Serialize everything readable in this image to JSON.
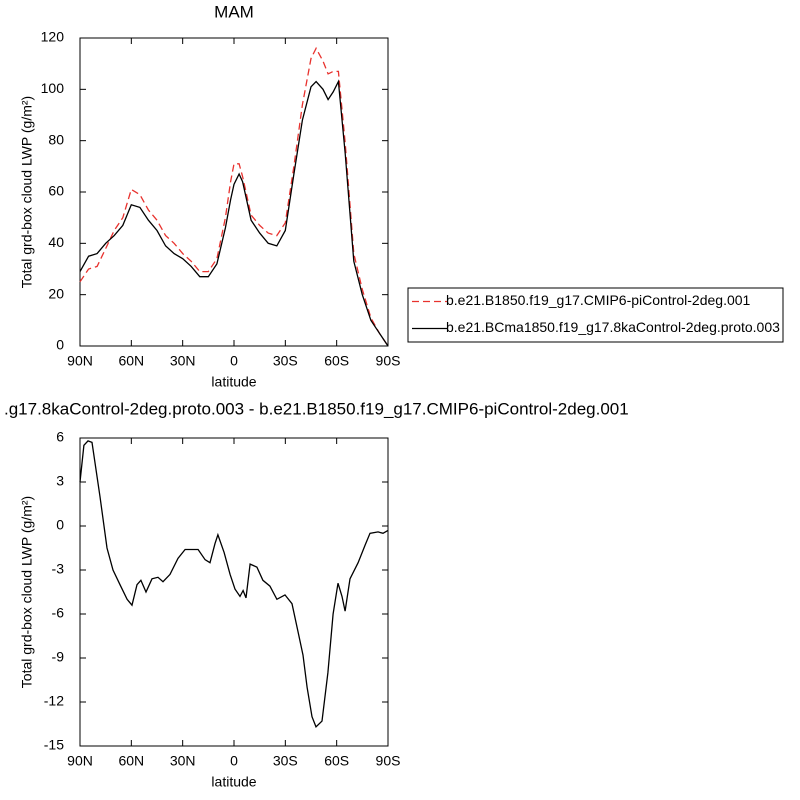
{
  "chart_data": [
    {
      "type": "line",
      "title": "MAM",
      "xlabel": "latitude",
      "ylabel": "Total grd-box cloud LWP (g/m²)",
      "x": [
        90,
        85,
        80,
        75,
        70,
        65,
        60,
        55,
        50,
        45,
        40,
        35,
        30,
        25,
        20,
        15,
        10,
        5,
        2,
        0,
        -3,
        -5,
        -10,
        -15,
        -20,
        -25,
        -30,
        -35,
        -40,
        -45,
        -48,
        -52,
        -55,
        -58,
        -61,
        -65,
        -70,
        -75,
        -80,
        -85,
        -90
      ],
      "series": [
        {
          "name": "b.e21.B1850.f19_g17.CMIP6-piControl-2deg.001",
          "color": "#e8322e",
          "dash": true,
          "values": [
            25,
            30,
            31,
            38,
            45,
            50,
            61,
            59,
            53,
            49,
            43,
            40,
            36,
            33,
            29,
            29,
            34,
            50,
            64,
            71,
            71,
            66,
            51,
            47,
            44,
            43,
            48,
            70,
            94,
            112,
            116,
            111,
            106,
            107,
            107,
            79,
            36,
            22,
            11,
            5,
            0
          ]
        },
        {
          "name": "b.e21.BCma1850.f19_g17.8kaControl-2deg.proto.003",
          "color": "#000000",
          "dash": false,
          "values": [
            29,
            35,
            36,
            40,
            43,
            47,
            55,
            54,
            49,
            45,
            39,
            36,
            34,
            31,
            27,
            27,
            32,
            46,
            57,
            63,
            67,
            64,
            49,
            44,
            40,
            39,
            45,
            67,
            88,
            101,
            103,
            100,
            96,
            99,
            103,
            75,
            33,
            20,
            10,
            5,
            0
          ]
        }
      ],
      "xlim": [
        90,
        -90
      ],
      "xticks": [
        {
          "value": 90,
          "label": "90N"
        },
        {
          "value": 60,
          "label": "60N"
        },
        {
          "value": 30,
          "label": "30N"
        },
        0,
        {
          "value": -30,
          "label": "30S"
        },
        {
          "value": -60,
          "label": "60S"
        },
        {
          "value": -90,
          "label": "90S"
        }
      ],
      "ylim": [
        0,
        120
      ],
      "yticks": [
        0,
        20,
        40,
        60,
        80,
        100,
        120
      ],
      "legend": "right"
    },
    {
      "type": "line",
      "title": ".g17.8kaControl-2deg.proto.003 - b.e21.B1850.f19_g17.CMIP6-piControl-2deg.001",
      "xlabel": "latitude",
      "ylabel": "Total grd-box cloud LWP (g/m²)",
      "x": [
        90,
        87.7,
        85.3,
        83,
        78.3,
        74.2,
        70.7,
        66.6,
        62.5,
        59.6,
        56.7,
        54.4,
        51.4,
        47.9,
        44.4,
        41.5,
        37.4,
        32.7,
        28.6,
        24.5,
        21,
        16.9,
        14,
        11.1,
        9.4,
        5.8,
        2.3,
        -0.6,
        -3.5,
        -5.3,
        -7,
        -9.4,
        -13.4,
        -16.9,
        -21,
        -25.1,
        -29.8,
        -33.9,
        -37.4,
        -40.3,
        -42.7,
        -45.6,
        -47.9,
        -51.4,
        -54.9,
        -57.9,
        -60.8,
        -63.1,
        -64.9,
        -67.8,
        -72.5,
        -76.6,
        -79.5,
        -84.2,
        -87.1,
        -90
      ],
      "series": [
        {
          "color": "#000000",
          "dash": false,
          "values": [
            3,
            5.5,
            5.8,
            5.7,
            2,
            -1.5,
            -3,
            -4,
            -5,
            -5.4,
            -4,
            -3.7,
            -4.5,
            -3.6,
            -3.5,
            -3.8,
            -3.3,
            -2.2,
            -1.6,
            -1.6,
            -1.6,
            -2.3,
            -2.5,
            -1.2,
            -0.6,
            -1.8,
            -3.3,
            -4.3,
            -4.8,
            -4.4,
            -4.9,
            -2.6,
            -2.8,
            -3.7,
            -4.1,
            -5,
            -4.7,
            -5.3,
            -7.2,
            -8.8,
            -11,
            -13,
            -13.7,
            -13.3,
            -10,
            -6,
            -3.9,
            -4.8,
            -5.8,
            -3.6,
            -2.5,
            -1.3,
            -0.5,
            -0.4,
            -0.5,
            -0.3
          ]
        }
      ],
      "xlim": [
        90,
        -90
      ],
      "xticks": [
        {
          "value": 90,
          "label": "90N"
        },
        {
          "value": 60,
          "label": "60N"
        },
        {
          "value": 30,
          "label": "30N"
        },
        0,
        {
          "value": -30,
          "label": "30S"
        },
        {
          "value": -60,
          "label": "60S"
        },
        {
          "value": -90,
          "label": "90S"
        }
      ],
      "ylim": [
        -15,
        6
      ],
      "yticks": [
        -15,
        -12,
        -9,
        -6,
        -3,
        0,
        3,
        6
      ]
    }
  ]
}
